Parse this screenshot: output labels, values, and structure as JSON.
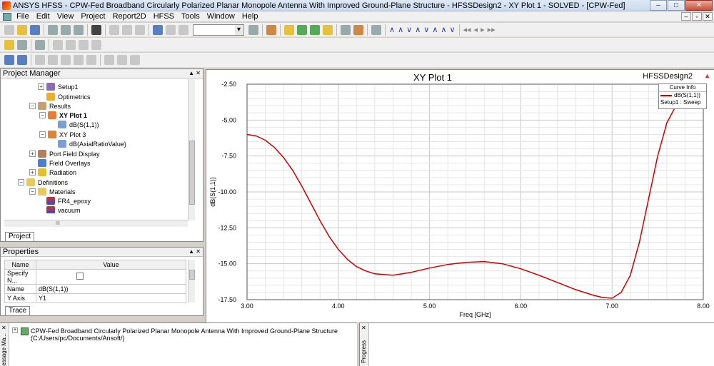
{
  "window": {
    "title": "ANSYS HFSS - CPW-Fed Broadband Circularly Polarized Planar Monopole Antenna With Improved Ground-Plane Structure - HFSSDesign2 - XY Plot 1 - SOLVED - [CPW-Fed]",
    "minimize": "–",
    "maximize": "□",
    "close": "✕",
    "mdi_minimize": "–",
    "mdi_restore": "▫",
    "mdi_close": "✕"
  },
  "menu": [
    "File",
    "Edit",
    "View",
    "Project",
    "Report2D",
    "HFSS",
    "Tools",
    "Window",
    "Help"
  ],
  "project_manager": {
    "title": "Project Manager",
    "header_buttons": "▲ ✕",
    "tab": "Project",
    "tree": [
      {
        "label": "Setup1",
        "expander": "+",
        "bold": false
      },
      {
        "label": "Optimetrics",
        "expander": "",
        "bold": false
      },
      {
        "label": "Results",
        "expander": "−",
        "bold": false
      },
      {
        "label": "XY Plot 1",
        "expander": "−",
        "bold": true
      },
      {
        "label": "dB(S(1,1))",
        "expander": "",
        "bold": false
      },
      {
        "label": "XY Plot 3",
        "expander": "−",
        "bold": false
      },
      {
        "label": "dB(AxialRatioValue)",
        "expander": "",
        "bold": false
      },
      {
        "label": "Port Field Display",
        "expander": "+",
        "bold": false
      },
      {
        "label": "Field Overlays",
        "expander": "",
        "bold": false
      },
      {
        "label": "Radiation",
        "expander": "+",
        "bold": false
      },
      {
        "label": "Definitions",
        "expander": "−",
        "bold": false
      },
      {
        "label": "Materials",
        "expander": "−",
        "bold": false
      },
      {
        "label": "FR4_epoxy",
        "expander": "",
        "bold": false
      },
      {
        "label": "vacuum",
        "expander": "",
        "bold": false
      }
    ],
    "hscroll_grip": "III"
  },
  "properties": {
    "title": "Properties",
    "header_buttons": "▲ ✕",
    "tab": "Trace",
    "columns": [
      "Name",
      "Value"
    ],
    "rows": [
      {
        "name": "Specify N...",
        "value": ""
      },
      {
        "name": "Name",
        "value": "dB(S(1,1))"
      },
      {
        "name": "Y Axis",
        "value": "Y1"
      }
    ]
  },
  "plot": {
    "title": "XY Plot 1",
    "design": "HFSSDesign2",
    "legend_title": "Curve Info",
    "legend_curve": "dB(S(1,1))",
    "legend_sub": "Setup1 : Sweep"
  },
  "chart_data": {
    "type": "line",
    "title": "XY Plot 1",
    "xlabel": "Freq [GHz]",
    "ylabel": "dB(S(1,1))",
    "xlim": [
      3.0,
      8.0
    ],
    "ylim": [
      -17.5,
      -2.5
    ],
    "x_ticks": [
      "3.00",
      "4.00",
      "5.00",
      "6.00",
      "7.00",
      "8.00"
    ],
    "y_ticks": [
      "-2.50",
      "-5.00",
      "-7.50",
      "-10.00",
      "-12.50",
      "-15.00",
      "-17.50"
    ],
    "grid": true,
    "legend_position": "top-right",
    "series": [
      {
        "name": "dB(S(1,1))",
        "color": "#cc0000",
        "x": [
          3.0,
          3.1,
          3.2,
          3.3,
          3.4,
          3.5,
          3.6,
          3.7,
          3.8,
          3.9,
          4.0,
          4.1,
          4.2,
          4.3,
          4.4,
          4.5,
          4.6,
          4.7,
          4.8,
          4.9,
          5.0,
          5.2,
          5.4,
          5.6,
          5.8,
          6.0,
          6.2,
          6.4,
          6.6,
          6.8,
          6.9,
          7.0,
          7.1,
          7.2,
          7.3,
          7.4,
          7.5,
          7.6,
          7.7,
          7.8,
          7.9
        ],
        "y": [
          -6.0,
          -6.1,
          -6.4,
          -6.9,
          -7.6,
          -8.5,
          -9.6,
          -10.8,
          -12.0,
          -13.1,
          -14.0,
          -14.7,
          -15.2,
          -15.5,
          -15.7,
          -15.75,
          -15.8,
          -15.7,
          -15.6,
          -15.45,
          -15.3,
          -15.05,
          -14.9,
          -14.85,
          -15.0,
          -15.35,
          -15.8,
          -16.3,
          -16.8,
          -17.2,
          -17.35,
          -17.4,
          -17.0,
          -15.8,
          -13.5,
          -10.5,
          -7.5,
          -5.2,
          -4.0,
          -3.6,
          -3.5
        ]
      }
    ]
  },
  "message_manager": {
    "label": "Message Ma...",
    "project_line": "CPW-Fed Broadband Circularly Polarized Planar Monopole Antenna With Improved Ground-Plane Structure",
    "path_line": "(C:/Users/pc/Documents/Ansoft/)",
    "expander": "+",
    "close": "✕"
  },
  "progress": {
    "label": "Progress",
    "close": "✕"
  }
}
